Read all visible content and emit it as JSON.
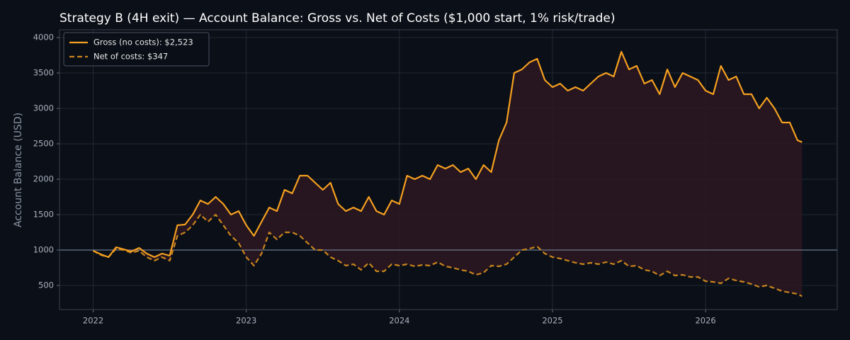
{
  "chart_data": {
    "type": "line",
    "title": "Strategy B (4H exit) — Account Balance: Gross vs. Net of Costs ($1,000 start, 1% risk/trade)",
    "y_label": "Account Balance (USD)",
    "x": [
      2022.0,
      2022.05,
      2022.1,
      2022.15,
      2022.2,
      2022.25,
      2022.3,
      2022.35,
      2022.4,
      2022.45,
      2022.5,
      2022.55,
      2022.6,
      2022.65,
      2022.7,
      2022.75,
      2022.8,
      2022.85,
      2022.9,
      2022.95,
      2023.0,
      2023.05,
      2023.1,
      2023.15,
      2023.2,
      2023.25,
      2023.3,
      2023.35,
      2023.4,
      2023.45,
      2023.5,
      2023.55,
      2023.6,
      2023.65,
      2023.7,
      2023.75,
      2023.8,
      2023.85,
      2023.9,
      2023.95,
      2024.0,
      2024.05,
      2024.1,
      2024.15,
      2024.2,
      2024.25,
      2024.3,
      2024.35,
      2024.4,
      2024.45,
      2024.5,
      2024.55,
      2024.6,
      2024.65,
      2024.7,
      2024.75,
      2024.8,
      2024.85,
      2024.9,
      2024.95,
      2025.0,
      2025.05,
      2025.1,
      2025.15,
      2025.2,
      2025.25,
      2025.3,
      2025.35,
      2025.4,
      2025.45,
      2025.5,
      2025.55,
      2025.6,
      2025.65,
      2025.7,
      2025.75,
      2025.8,
      2025.85,
      2025.9,
      2025.95,
      2026.0,
      2026.05,
      2026.1,
      2026.15,
      2026.2,
      2026.25,
      2026.3,
      2026.35,
      2026.4,
      2026.45,
      2026.5,
      2026.55,
      2026.6,
      2026.63
    ],
    "series": [
      {
        "name": "Gross (no costs): $2,523",
        "color": "#f5a020",
        "dash": false,
        "values": [
          990,
          940,
          900,
          1040,
          1010,
          980,
          1030,
          950,
          900,
          950,
          920,
          1350,
          1360,
          1500,
          1700,
          1650,
          1750,
          1650,
          1500,
          1550,
          1350,
          1200,
          1400,
          1600,
          1550,
          1850,
          1800,
          2050,
          2050,
          1950,
          1850,
          1950,
          1650,
          1550,
          1600,
          1550,
          1750,
          1550,
          1500,
          1700,
          1650,
          2050,
          2000,
          2050,
          2000,
          2200,
          2150,
          2200,
          2100,
          2150,
          2000,
          2200,
          2100,
          2550,
          2800,
          3500,
          3550,
          3650,
          3700,
          3400,
          3300,
          3350,
          3250,
          3300,
          3250,
          3350,
          3450,
          3500,
          3450,
          3800,
          3550,
          3600,
          3350,
          3400,
          3200,
          3550,
          3300,
          3500,
          3450,
          3400,
          3250,
          3200,
          3600,
          3400,
          3450,
          3200,
          3200,
          3000,
          3150,
          3000,
          2800,
          2800,
          2550,
          2523
        ]
      },
      {
        "name": "Net of costs: $347",
        "color": "#c8841e",
        "dash": true,
        "values": [
          990,
          930,
          900,
          1020,
          1000,
          960,
          990,
          900,
          850,
          900,
          850,
          1200,
          1250,
          1350,
          1500,
          1400,
          1500,
          1350,
          1200,
          1100,
          900,
          780,
          950,
          1250,
          1150,
          1250,
          1250,
          1200,
          1100,
          1000,
          1000,
          900,
          850,
          780,
          800,
          720,
          820,
          700,
          700,
          800,
          780,
          800,
          770,
          790,
          780,
          830,
          770,
          750,
          720,
          700,
          650,
          680,
          780,
          770,
          800,
          900,
          1000,
          1020,
          1050,
          950,
          900,
          880,
          850,
          820,
          800,
          820,
          800,
          830,
          800,
          850,
          770,
          780,
          720,
          700,
          640,
          700,
          640,
          650,
          620,
          620,
          560,
          550,
          530,
          600,
          570,
          550,
          520,
          480,
          500,
          460,
          420,
          400,
          380,
          347
        ]
      }
    ],
    "fill_color": "#2a1720",
    "reference_line": 1000,
    "reference_color": "#6b7a8f",
    "xlim": [
      2021.78,
      2026.86
    ],
    "xticks": [
      2022,
      2023,
      2024,
      2025,
      2026
    ],
    "ylim": [
      160,
      4110
    ],
    "yticks": [
      500,
      1000,
      1500,
      2000,
      2500,
      3000,
      3500,
      4000
    ],
    "grid": true,
    "legend": "upper left"
  }
}
